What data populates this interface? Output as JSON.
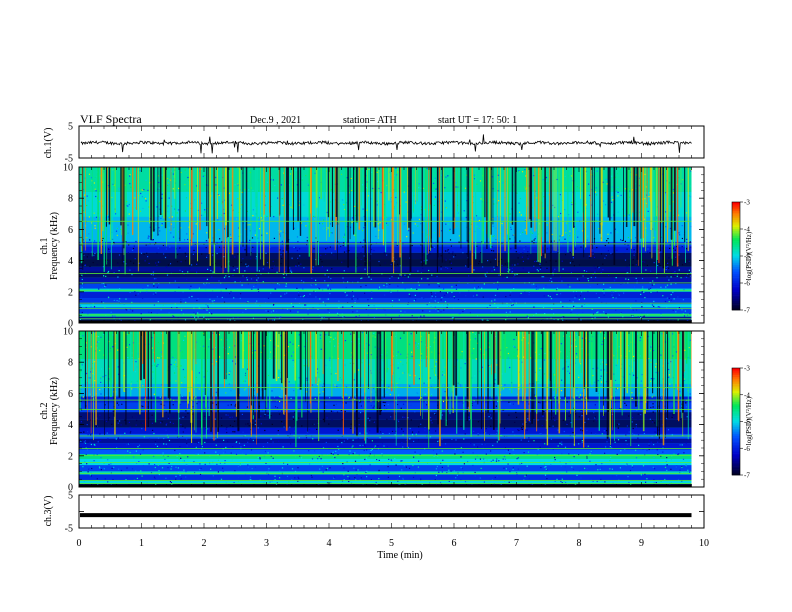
{
  "header": {
    "title": "VLF  Spectra",
    "date": "Dec.9   , 2021",
    "station": "station= ATH",
    "start": "start  UT  =    17: 50: 1"
  },
  "chart_data": [
    {
      "type": "line",
      "ylabel": "ch.1(V)",
      "ylim": [
        -5,
        5
      ],
      "y_tick_labels": [
        "5",
        "-5"
      ],
      "baseline": -0.3,
      "description_values": "waveform hovering near 0 V with small fluctuations and occasional downward spikes"
    },
    {
      "type": "heatmap",
      "ylabel_line1": "ch.1",
      "ylabel_line2": "Frequency (kHz)",
      "ylim": [
        0,
        10
      ],
      "y_ticks": [
        "0",
        "2",
        "4",
        "6",
        "8",
        "10"
      ],
      "colorbar": {
        "label": "log(PSD)(V²/Hz)",
        "ticks": [
          "-3",
          "-4",
          "-5",
          "-6",
          "-7"
        ],
        "range": [
          -7,
          -3
        ]
      }
    },
    {
      "type": "heatmap",
      "ylabel_line1": "ch.2",
      "ylabel_line2": "Frequency (kHz)",
      "ylim": [
        0,
        10
      ],
      "y_ticks": [
        "0",
        "2",
        "4",
        "6",
        "8",
        "10"
      ],
      "colorbar": {
        "label": "log(PSD)(V²/Hz)",
        "ticks": [
          "-3",
          "-4",
          "-5",
          "-6",
          "-7"
        ],
        "range": [
          -7,
          -3
        ]
      }
    },
    {
      "type": "line",
      "ylabel": "ch.3(V)",
      "ylim": [
        -5,
        5
      ],
      "y_tick_labels": [
        "5",
        "",
        "-5"
      ],
      "baseline": -1.1
    }
  ],
  "x_axis": {
    "label": "Time  (min)",
    "range": [
      0,
      10
    ],
    "ticks": [
      "0",
      "1",
      "2",
      "3",
      "4",
      "5",
      "6",
      "7",
      "8",
      "9",
      "10"
    ],
    "data_end": 9.8
  },
  "colors": {
    "background": "#ffffff",
    "dark_navy": "#000033",
    "blue": "#0000ff",
    "cyan": "#00ffff",
    "green": "#00ff00",
    "yellow": "#ffff00",
    "red": "#ff0000"
  }
}
